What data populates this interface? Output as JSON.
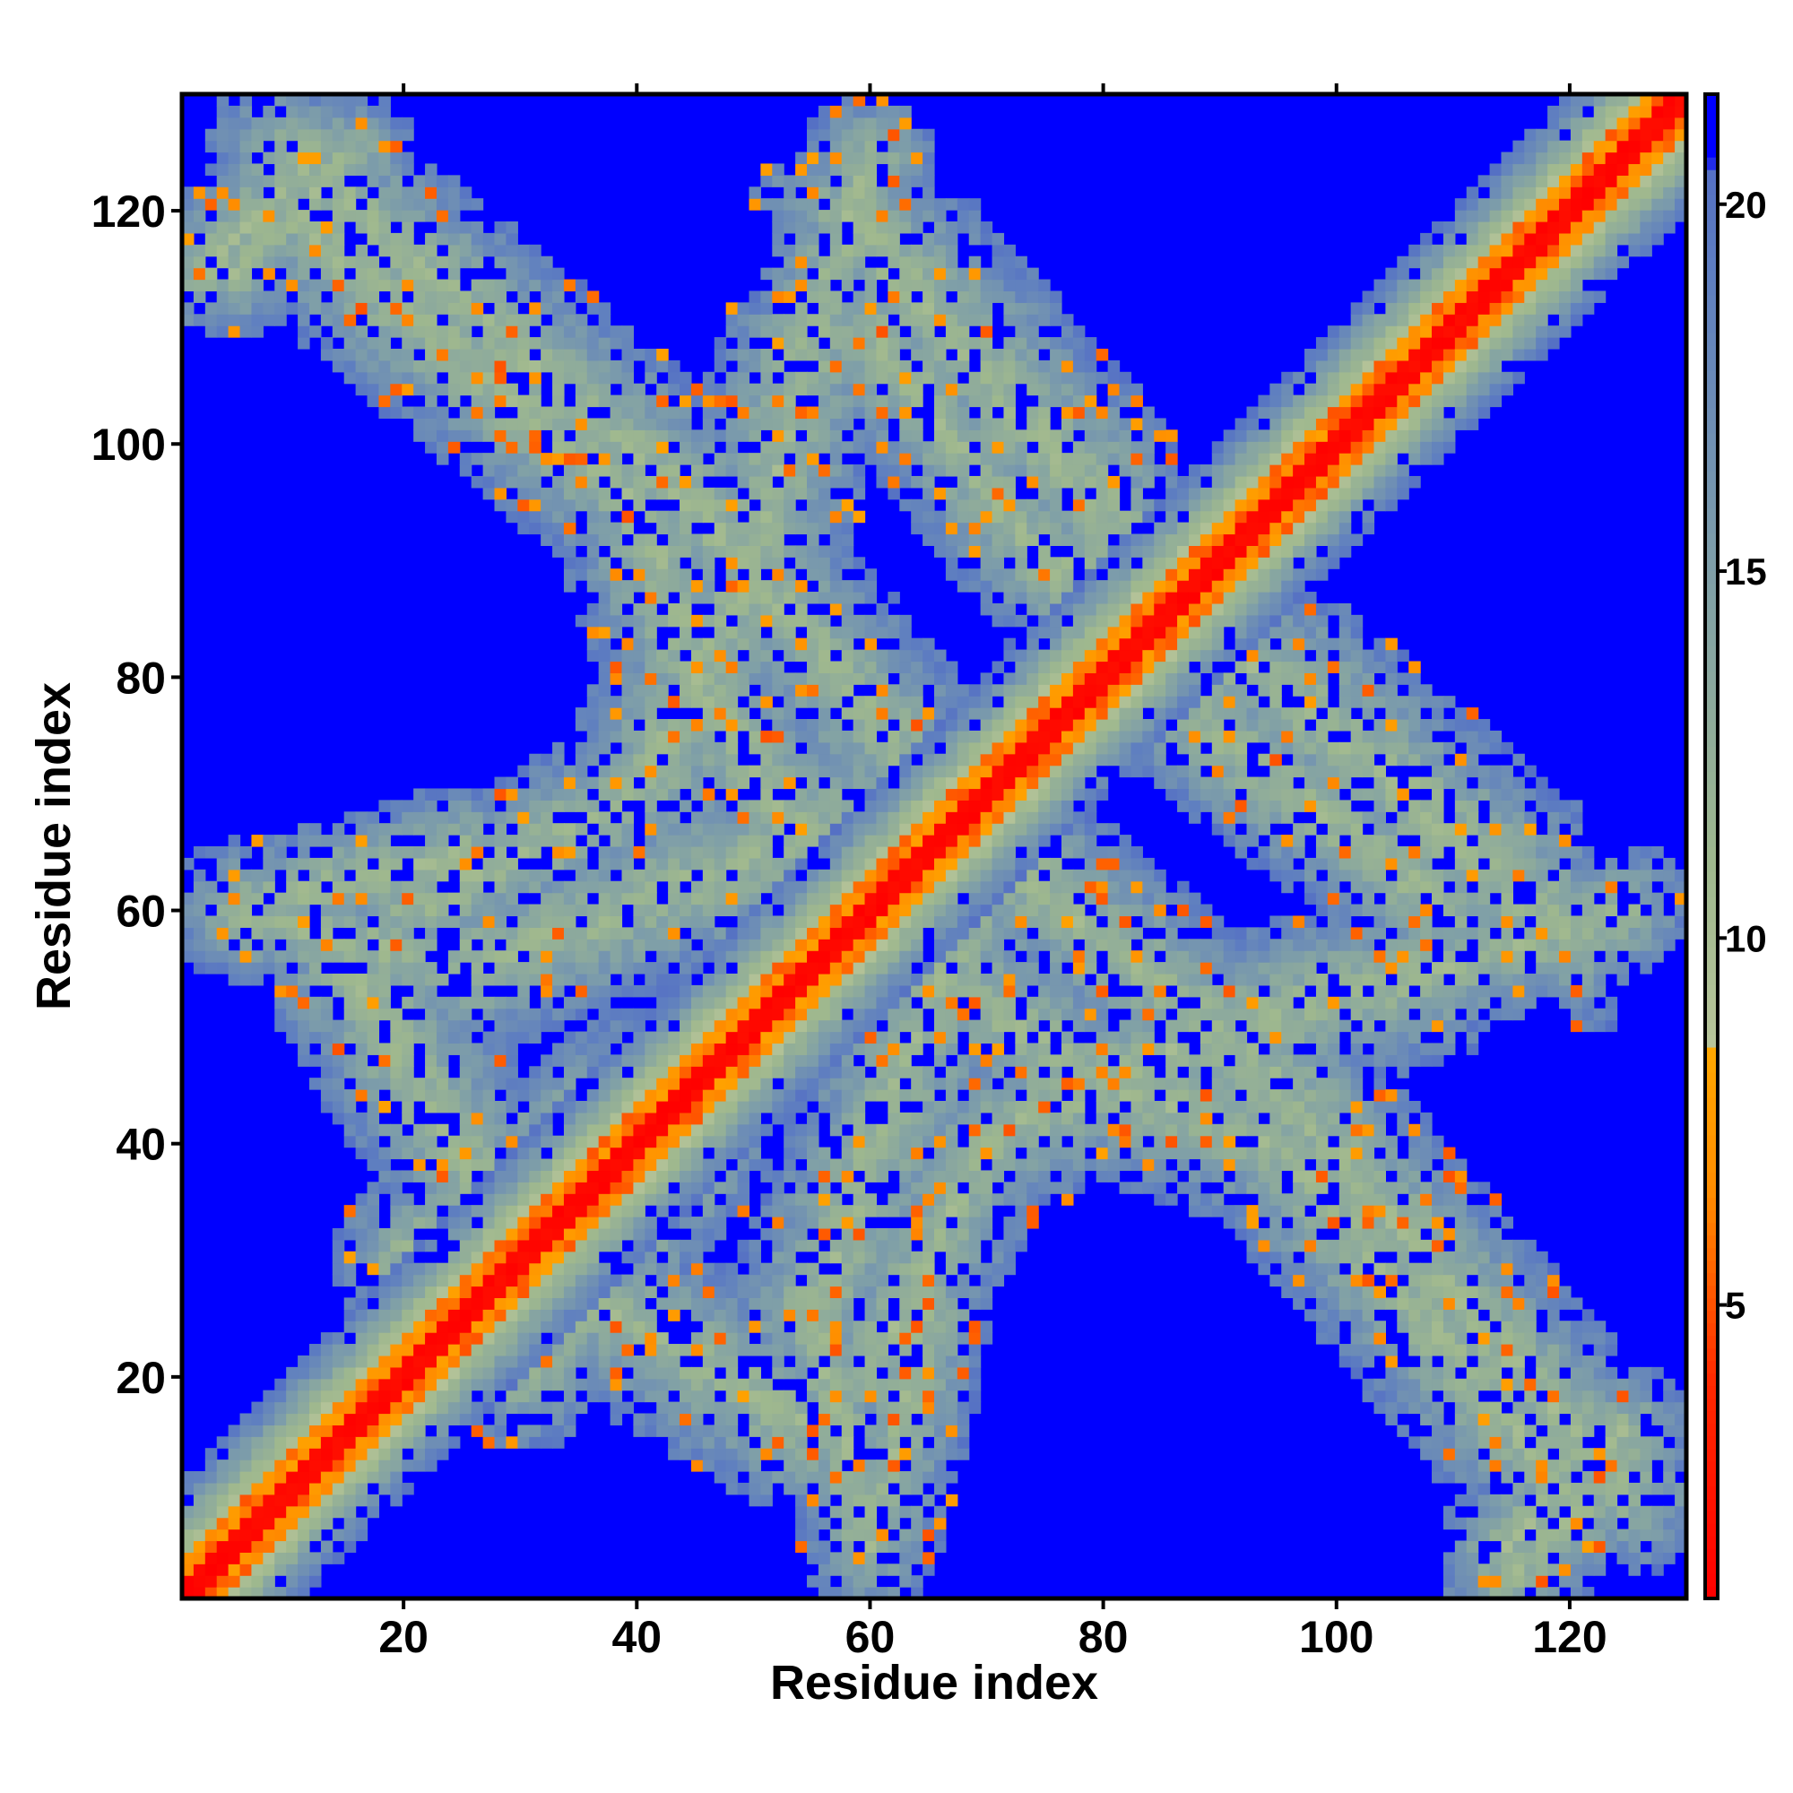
{
  "chart_data": {
    "type": "heatmap",
    "title": "",
    "xlabel": "Residue index",
    "ylabel": "Residue index",
    "n_residues": 130,
    "xlim": [
      1,
      130
    ],
    "ylim": [
      1,
      130
    ],
    "x_ticks": [
      20,
      40,
      60,
      80,
      100,
      120
    ],
    "y_ticks": [
      20,
      40,
      60,
      80,
      100,
      120
    ],
    "x_tick_labels": [
      "20",
      "40",
      "60",
      "80",
      "100",
      "120"
    ],
    "y_tick_labels": [
      "20",
      "40",
      "60",
      "80",
      "100",
      "120"
    ],
    "colorbar": {
      "range": [
        1,
        21.5
      ],
      "ticks": [
        5,
        10,
        15,
        20
      ],
      "tick_labels": [
        "5",
        "10",
        "15",
        "20"
      ],
      "stops": [
        {
          "value": 1,
          "color": "#ff0000"
        },
        {
          "value": 4,
          "color": "#ff2a00"
        },
        {
          "value": 6.5,
          "color": "#ff8c00"
        },
        {
          "value": 8.5,
          "color": "#ffa800"
        },
        {
          "value": 8.6,
          "color": "#b7c49a"
        },
        {
          "value": 11,
          "color": "#9fb88e"
        },
        {
          "value": 15,
          "color": "#7f9fa8"
        },
        {
          "value": 19,
          "color": "#5f7fc0"
        },
        {
          "value": 20.5,
          "color": "#5570c4"
        },
        {
          "value": 20.6,
          "color": "#0000ff"
        },
        {
          "value": 21.5,
          "color": "#0000ff"
        }
      ]
    },
    "background_color": "#0000ff",
    "structure_bands": [
      {
        "from": [
          1,
          1
        ],
        "to": [
          130,
          130
        ],
        "width": 9,
        "type": "diagonal"
      },
      {
        "from": [
          10,
          125
        ],
        "to": [
          45,
          95
        ],
        "width": 8
      },
      {
        "from": [
          45,
          95
        ],
        "to": [
          70,
          65
        ],
        "width": 8
      },
      {
        "from": [
          70,
          65
        ],
        "to": [
          55,
          25
        ],
        "width": 8
      },
      {
        "from": [
          55,
          25
        ],
        "to": [
          60,
          5
        ],
        "width": 6
      },
      {
        "from": [
          30,
          20
        ],
        "to": [
          45,
          40
        ],
        "width": 7
      },
      {
        "from": [
          15,
          55
        ],
        "to": [
          30,
          30
        ],
        "width": 8
      },
      {
        "from": [
          5,
          60
        ],
        "to": [
          25,
          65
        ],
        "width": 6
      },
      {
        "from": [
          20,
          60
        ],
        "to": [
          40,
          70
        ],
        "width": 7
      },
      {
        "from": [
          40,
          70
        ],
        "to": [
          50,
          90
        ],
        "width": 8
      },
      {
        "from": [
          50,
          90
        ],
        "to": [
          55,
          110
        ],
        "width": 8
      },
      {
        "from": [
          55,
          110
        ],
        "to": [
          60,
          125
        ],
        "width": 6
      },
      {
        "from": [
          60,
          110
        ],
        "to": [
          75,
          90
        ],
        "width": 7
      },
      {
        "from": [
          75,
          90
        ],
        "to": [
          95,
          80
        ],
        "width": 8
      },
      {
        "from": [
          95,
          80
        ],
        "to": [
          120,
          58
        ],
        "width": 9
      },
      {
        "from": [
          65,
          55
        ],
        "to": [
          80,
          45
        ],
        "width": 8
      },
      {
        "from": [
          80,
          45
        ],
        "to": [
          95,
          40
        ],
        "width": 8
      },
      {
        "from": [
          95,
          40
        ],
        "to": [
          105,
          28
        ],
        "width": 8
      },
      {
        "from": [
          105,
          28
        ],
        "to": [
          120,
          10
        ],
        "width": 8
      },
      {
        "from": [
          2,
          115
        ],
        "to": [
          12,
          125
        ],
        "width": 6
      },
      {
        "from": [
          2,
          2
        ],
        "to": [
          10,
          10
        ],
        "width": 6
      },
      {
        "from": [
          115,
          5
        ],
        "to": [
          125,
          15
        ],
        "width": 6
      }
    ]
  }
}
